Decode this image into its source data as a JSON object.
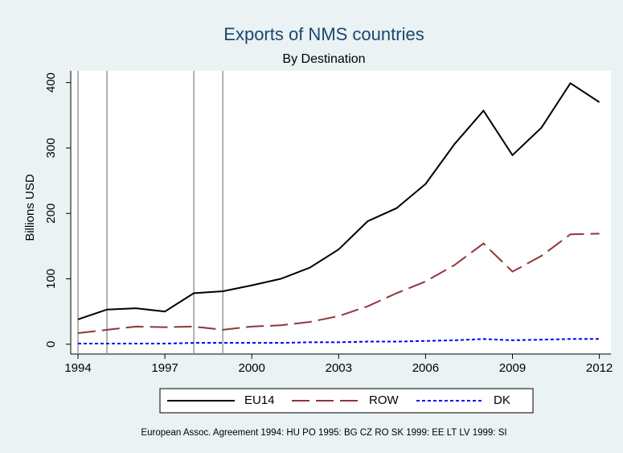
{
  "chart_data": {
    "type": "line",
    "title": "Exports of NMS countries",
    "subtitle": "By Destination",
    "y_label": "Billions USD",
    "note": "European Assoc. Agreement 1994: HU PO 1995: BG CZ RO SK 1999: EE LT LV 1999: SI",
    "x": [
      1994,
      1995,
      1996,
      1997,
      1998,
      1999,
      2000,
      2001,
      2002,
      2003,
      2004,
      2005,
      2006,
      2007,
      2008,
      2009,
      2010,
      2011,
      2012
    ],
    "series": [
      {
        "name": "EU14",
        "color": "#000000",
        "style": "solid",
        "values": [
          38,
          53,
          55,
          50,
          78,
          81,
          90,
          100,
          117,
          145,
          188,
          208,
          245,
          306,
          357,
          289,
          331,
          399,
          370
        ]
      },
      {
        "name": "ROW",
        "color": "#90353b",
        "style": "dashed",
        "values": [
          17,
          22,
          27,
          26,
          27,
          22,
          27,
          29,
          34,
          43,
          58,
          78,
          96,
          121,
          154,
          111,
          135,
          168,
          169
        ]
      },
      {
        "name": "DK",
        "color": "#0000ff",
        "style": "dotted",
        "values": [
          1,
          1,
          1,
          1,
          2,
          2,
          2,
          2,
          3,
          3,
          4,
          4,
          5,
          6,
          8,
          6,
          7,
          8,
          8
        ]
      }
    ],
    "xlines": [
      1994,
      1995,
      1998,
      1999
    ],
    "xlim": [
      1993.75,
      2012.4
    ],
    "ylim": [
      -15,
      418
    ],
    "xticks": [
      1994,
      1997,
      2000,
      2003,
      2006,
      2009,
      2012
    ],
    "yticks": [
      0,
      100,
      200,
      300,
      400
    ],
    "grid": false
  }
}
